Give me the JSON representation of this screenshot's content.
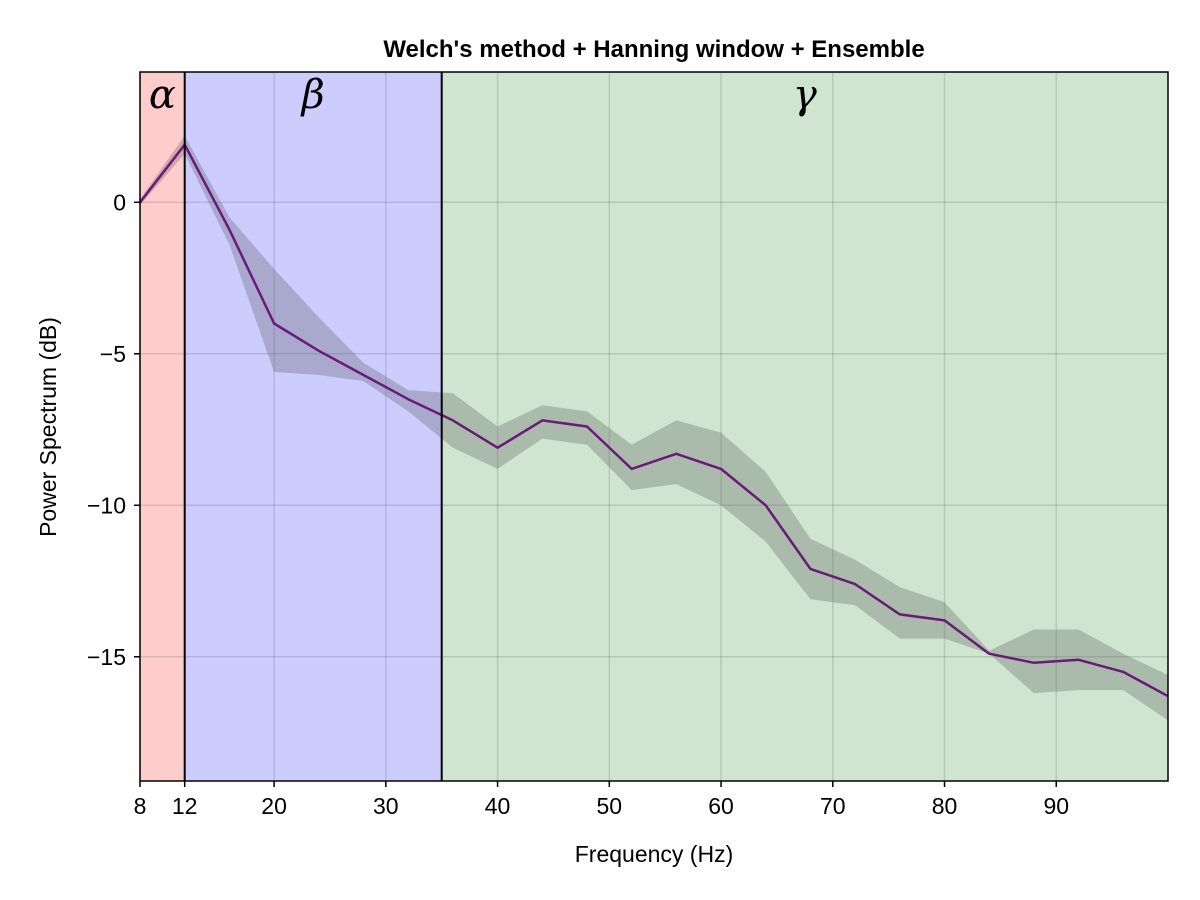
{
  "chart_data": {
    "type": "line",
    "title": "Welch's method + Hanning window + Ensemble",
    "xlabel": "Frequency (Hz)",
    "ylabel": "Power Spectrum (dB)",
    "xlim": [
      8,
      100
    ],
    "ylim": [
      -19.1,
      4.3
    ],
    "x_ticks": [
      8,
      12,
      20,
      30,
      40,
      50,
      60,
      70,
      80,
      90
    ],
    "y_ticks": [
      0,
      -5,
      -10,
      -15
    ],
    "grid": true,
    "bands": [
      {
        "label": "α",
        "from": 8,
        "to": 12,
        "color": "#ffcccc"
      },
      {
        "label": "β",
        "from": 12,
        "to": 35,
        "color": "#ccccff"
      },
      {
        "label": "γ",
        "from": 35,
        "to": 100,
        "color": "#cfe5cf"
      }
    ],
    "band_dividers": [
      12,
      35
    ],
    "line_color": "#6a1a78",
    "series": [
      {
        "x": [
          8,
          12,
          16,
          20,
          24,
          28,
          32,
          36,
          40,
          44,
          48,
          52,
          56,
          60,
          64,
          68,
          72,
          76,
          80,
          84,
          88,
          92,
          96,
          100
        ],
        "values": [
          0,
          1.9,
          -0.9,
          -4.0,
          -4.9,
          -5.7,
          -6.5,
          -7.2,
          -8.1,
          -7.2,
          -7.4,
          -8.8,
          -8.3,
          -8.8,
          -10.0,
          -12.1,
          -12.6,
          -13.6,
          -13.8,
          -14.9,
          -15.2,
          -15.1,
          -15.5,
          -16.3
        ],
        "upper": [
          0.1,
          2.2,
          -0.5,
          -2.2,
          -3.8,
          -5.3,
          -6.2,
          -6.3,
          -7.4,
          -6.7,
          -6.9,
          -8.0,
          -7.2,
          -7.6,
          -8.9,
          -11.1,
          -11.8,
          -12.7,
          -13.2,
          -14.8,
          -14.1,
          -14.1,
          -14.9,
          -15.6
        ],
        "lower": [
          -0.1,
          1.6,
          -1.4,
          -5.6,
          -5.7,
          -5.9,
          -6.9,
          -8.1,
          -8.8,
          -7.8,
          -8.0,
          -9.5,
          -9.3,
          -10.0,
          -11.2,
          -13.1,
          -13.3,
          -14.4,
          -14.4,
          -14.9,
          -16.2,
          -16.1,
          -16.1,
          -17.1
        ]
      }
    ]
  }
}
